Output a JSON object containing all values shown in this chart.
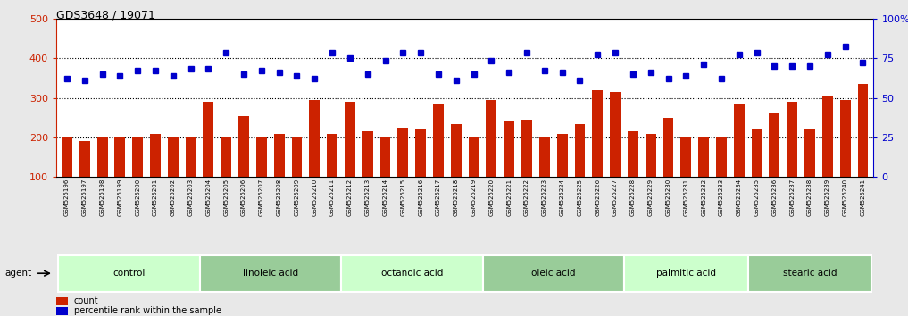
{
  "title": "GDS3648 / 19071",
  "samples": [
    "GSM525196",
    "GSM525197",
    "GSM525198",
    "GSM525199",
    "GSM525200",
    "GSM525201",
    "GSM525202",
    "GSM525203",
    "GSM525204",
    "GSM525205",
    "GSM525206",
    "GSM525207",
    "GSM525208",
    "GSM525209",
    "GSM525210",
    "GSM525211",
    "GSM525212",
    "GSM525213",
    "GSM525214",
    "GSM525215",
    "GSM525216",
    "GSM525217",
    "GSM525218",
    "GSM525219",
    "GSM525220",
    "GSM525221",
    "GSM525222",
    "GSM525223",
    "GSM525224",
    "GSM525225",
    "GSM525226",
    "GSM525227",
    "GSM525228",
    "GSM525229",
    "GSM525230",
    "GSM525231",
    "GSM525232",
    "GSM525233",
    "GSM525234",
    "GSM525235",
    "GSM525236",
    "GSM525237",
    "GSM525238",
    "GSM525239",
    "GSM525240",
    "GSM525241"
  ],
  "bar_values": [
    200,
    190,
    200,
    200,
    200,
    210,
    200,
    200,
    290,
    200,
    255,
    200,
    210,
    200,
    295,
    210,
    290,
    215,
    200,
    225,
    220,
    285,
    235,
    200,
    295,
    240,
    245,
    200,
    210,
    235,
    320,
    315,
    215,
    210,
    250,
    200,
    200,
    200,
    285,
    220,
    260,
    290,
    220,
    305,
    295,
    335
  ],
  "dot_values": [
    350,
    345,
    360,
    355,
    370,
    370,
    355,
    375,
    375,
    415,
    360,
    370,
    365,
    355,
    350,
    415,
    400,
    360,
    395,
    415,
    415,
    360,
    345,
    360,
    395,
    365,
    415,
    370,
    365,
    345,
    410,
    415,
    360,
    365,
    350,
    355,
    385,
    350,
    410,
    415,
    380,
    380,
    380,
    410,
    430,
    390
  ],
  "groups": [
    {
      "label": "control",
      "start": 0,
      "end": 7
    },
    {
      "label": "linoleic acid",
      "start": 8,
      "end": 15
    },
    {
      "label": "octanoic acid",
      "start": 16,
      "end": 23
    },
    {
      "label": "oleic acid",
      "start": 24,
      "end": 31
    },
    {
      "label": "palmitic acid",
      "start": 32,
      "end": 38
    },
    {
      "label": "stearic acid",
      "start": 39,
      "end": 45
    }
  ],
  "bar_color": "#CC2200",
  "dot_color": "#0000CC",
  "bar_ylim": [
    100,
    500
  ],
  "bar_yticks": [
    100,
    200,
    300,
    400,
    500
  ],
  "dot_ylim": [
    0,
    100
  ],
  "dot_yticks": [
    0,
    25,
    50,
    75,
    100
  ],
  "dot_yticklabels": [
    "0",
    "25",
    "50",
    "75",
    "100%"
  ],
  "bg_color": "#e8e8e8",
  "plot_bg": "#ffffff",
  "group_colors_list": [
    "#ccffcc",
    "#99cc99",
    "#ccffcc",
    "#99cc99",
    "#ccffcc",
    "#99cc99"
  ],
  "agent_label": "agent",
  "legend_count": "count",
  "legend_pct": "percentile rank within the sample",
  "hline_values": [
    200,
    300,
    400
  ],
  "hline_style": "dotted"
}
